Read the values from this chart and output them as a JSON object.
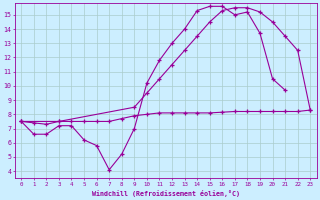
{
  "bg_color": "#cceeff",
  "grid_color": "#aacccc",
  "line_color": "#990099",
  "xlim": [
    -0.5,
    23.5
  ],
  "ylim": [
    3.5,
    15.8
  ],
  "xticks": [
    0,
    1,
    2,
    3,
    4,
    5,
    6,
    7,
    8,
    9,
    10,
    11,
    12,
    13,
    14,
    15,
    16,
    17,
    18,
    19,
    20,
    21,
    22,
    23
  ],
  "yticks": [
    4,
    5,
    6,
    7,
    8,
    9,
    10,
    11,
    12,
    13,
    14,
    15
  ],
  "xlabel": "Windchill (Refroidissement éolien,°C)",
  "line1_x": [
    0,
    1,
    2,
    3,
    4,
    5,
    6,
    7,
    8,
    9,
    10,
    11,
    12,
    13,
    14,
    15,
    16,
    17,
    18,
    19,
    20,
    21
  ],
  "line1_y": [
    7.5,
    6.6,
    6.6,
    7.2,
    7.2,
    6.2,
    5.8,
    4.1,
    5.2,
    7.0,
    10.2,
    11.8,
    13.0,
    14.0,
    15.3,
    15.6,
    15.6,
    15.0,
    15.2,
    13.7,
    10.5,
    9.7
  ],
  "line2_x": [
    0,
    3,
    9,
    10,
    11,
    12,
    13,
    14,
    15,
    16,
    17,
    18,
    19,
    20,
    21,
    22,
    23
  ],
  "line2_y": [
    7.5,
    7.5,
    8.5,
    9.5,
    10.5,
    11.5,
    12.5,
    13.5,
    14.5,
    15.3,
    15.5,
    15.5,
    15.2,
    14.5,
    13.5,
    12.5,
    8.3
  ],
  "line3_x": [
    0,
    1,
    2,
    3,
    4,
    5,
    6,
    7,
    8,
    9,
    10,
    11,
    12,
    13,
    14,
    15,
    16,
    17,
    18,
    19,
    20,
    21,
    22,
    23
  ],
  "line3_y": [
    7.5,
    7.4,
    7.3,
    7.5,
    7.5,
    7.5,
    7.5,
    7.5,
    7.7,
    7.9,
    8.0,
    8.1,
    8.1,
    8.1,
    8.1,
    8.1,
    8.15,
    8.2,
    8.2,
    8.2,
    8.2,
    8.2,
    8.2,
    8.3
  ]
}
